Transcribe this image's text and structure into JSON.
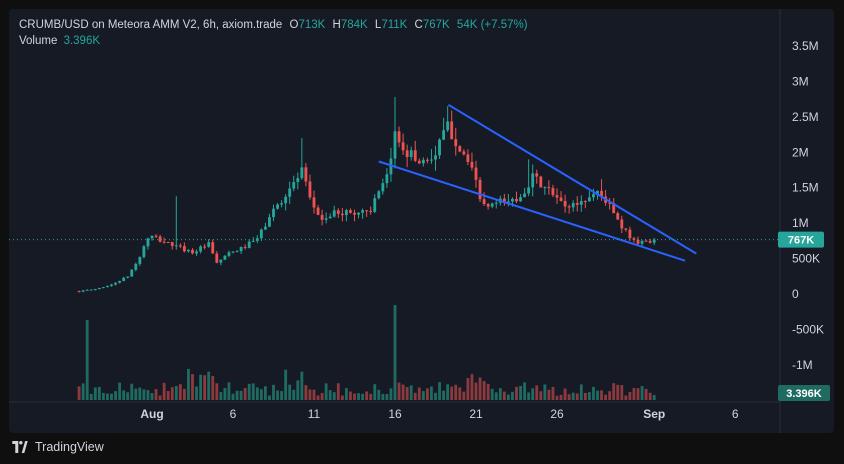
{
  "header": {
    "title": "CRUMB/USD on Meteora AMM V2, 6h, axiom.trade",
    "o_label": "O",
    "o_value": "713K",
    "h_label": "H",
    "h_value": "784K",
    "l_label": "L",
    "l_value": "711K",
    "c_label": "C",
    "c_value": "767K",
    "change": "54K (+7.57%)"
  },
  "volume": {
    "label": "Volume",
    "value": "3.396K"
  },
  "brand": {
    "name": "TradingView"
  },
  "colors": {
    "up": "#26a69a",
    "down": "#ef5350",
    "up_volume": "#1f6b62",
    "down_volume": "#8c3a3d",
    "trendline": "#2962ff",
    "background": "#161a25",
    "price_line": "#26a69a"
  },
  "chart_data": {
    "type": "candlestick",
    "title": "CRUMB/USD on Meteora AMM V2, 6h, axiom.trade",
    "y_ticks": [
      "3.5M",
      "3M",
      "2.5M",
      "2M",
      "1.5M",
      "1M",
      "500K",
      "0",
      "-500K",
      "-1M"
    ],
    "y_tick_values": [
      3500000,
      3000000,
      2500000,
      2000000,
      1500000,
      1000000,
      500000,
      0,
      -500000,
      -1000000
    ],
    "x_ticks": [
      "Aug",
      "6",
      "11",
      "16",
      "21",
      "26",
      "Sep",
      "6"
    ],
    "x_tick_days": [
      1,
      6,
      11,
      16,
      21,
      26,
      32,
      37
    ],
    "x_unit": "day of Aug (Sep 1 = 32)",
    "ylim": [
      -1500000,
      3800000
    ],
    "last_price_label": "767K",
    "last_price": 767000,
    "volume_label": "3.396K",
    "anchors": [
      [
        -3.5,
        40000
      ],
      [
        -2.5,
        70000
      ],
      [
        -1.5,
        130000
      ],
      [
        -0.5,
        250000
      ],
      [
        0.2,
        500000
      ],
      [
        0.8,
        820000
      ],
      [
        1.5,
        760000
      ],
      [
        2.5,
        670000
      ],
      [
        3.5,
        590000
      ],
      [
        4.5,
        700000
      ],
      [
        5.0,
        430000
      ],
      [
        5.5,
        540000
      ],
      [
        6.5,
        640000
      ],
      [
        7.5,
        780000
      ],
      [
        8.5,
        1180000
      ],
      [
        9.5,
        1480000
      ],
      [
        10.3,
        1740000
      ],
      [
        10.7,
        1330000
      ],
      [
        11.5,
        1050000
      ],
      [
        12.5,
        1160000
      ],
      [
        13.5,
        1140000
      ],
      [
        14.5,
        1200000
      ],
      [
        15.5,
        1620000
      ],
      [
        16.0,
        2250000
      ],
      [
        16.8,
        2000000
      ],
      [
        17.5,
        1870000
      ],
      [
        18.5,
        1960000
      ],
      [
        19.2,
        2380000
      ],
      [
        20.2,
        2000000
      ],
      [
        20.8,
        1690000
      ],
      [
        21.5,
        1220000
      ],
      [
        22.5,
        1290000
      ],
      [
        23.5,
        1330000
      ],
      [
        24.5,
        1640000
      ],
      [
        25.5,
        1450000
      ],
      [
        26.5,
        1230000
      ],
      [
        27.5,
        1300000
      ],
      [
        28.5,
        1450000
      ],
      [
        29.2,
        1270000
      ],
      [
        30.0,
        920000
      ],
      [
        31.0,
        720000
      ],
      [
        32.0,
        767000
      ]
    ],
    "volume_scale": "relative",
    "trendlines": [
      {
        "name": "upper",
        "from": [
          19.3,
          2670000
        ],
        "to": [
          34.6,
          570000
        ]
      },
      {
        "name": "lower",
        "from": [
          15.0,
          1870000
        ],
        "to": [
          33.9,
          470000
        ]
      }
    ]
  }
}
